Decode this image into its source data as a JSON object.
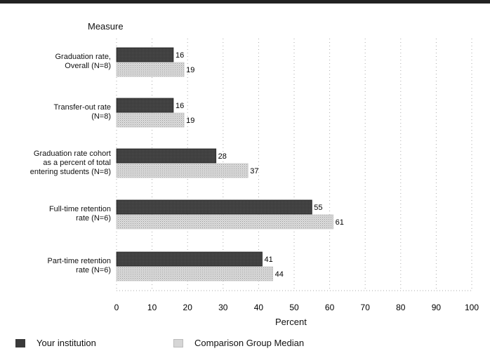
{
  "chart_data": {
    "type": "bar",
    "orientation": "horizontal",
    "y_title": "Measure",
    "xlabel": "Percent",
    "xlim": [
      0,
      100
    ],
    "xticks": [
      0,
      10,
      20,
      30,
      40,
      50,
      60,
      70,
      80,
      90,
      100
    ],
    "categories": [
      [
        "Graduation rate,",
        "Overall (N=8)"
      ],
      [
        "Transfer-out rate",
        "(N=8)"
      ],
      [
        "Graduation rate cohort",
        "as a percent of total",
        "entering students (N=8)"
      ],
      [
        "Full-time retention",
        "rate (N=6)"
      ],
      [
        "Part-time retention",
        "rate (N=6)"
      ]
    ],
    "series": [
      {
        "name": "Your institution",
        "values": [
          16,
          16,
          28,
          55,
          41
        ],
        "color": "#3a3a3a"
      },
      {
        "name": "Comparison Group Median",
        "values": [
          19,
          19,
          37,
          61,
          44
        ],
        "color": "#cfcfcf"
      }
    ],
    "legend_position": "bottom"
  }
}
